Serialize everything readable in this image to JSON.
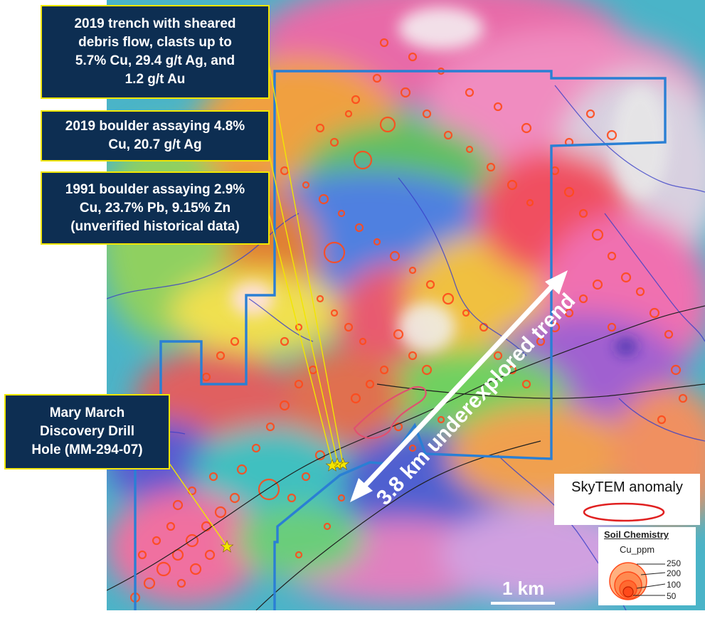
{
  "callouts": {
    "trench": [
      "2019 trench with sheared",
      "debris flow, clasts  up to",
      "5.7% Cu, 29.4 g/t Ag, and",
      "1.2 g/t Au"
    ],
    "boulder_2019": [
      "2019 boulder assaying 4.8%",
      "Cu, 20.7 g/t Ag"
    ],
    "boulder_1991": [
      "1991 boulder assaying 2.9%",
      "Cu, 23.7% Pb, 9.15% Zn",
      "(unverified historical data)"
    ],
    "discovery": [
      "Mary March",
      "Discovery Drill",
      "Hole (MM-294-07)"
    ]
  },
  "trend_label": "3.8 km underexplored trend",
  "legend_skytem": {
    "title": "SkyTEM anomaly",
    "color": "#e02020"
  },
  "legend_soil": {
    "title": "Soil Chemistry",
    "field": "Cu_ppm",
    "values": [
      "250",
      "200",
      "100",
      "50"
    ],
    "color": "#ff4a1a"
  },
  "scale_bar": {
    "label": "1 km"
  },
  "colors": {
    "callout_bg": "#0d2e52",
    "callout_border": "#f2e600",
    "claim_boundary": "#2a7fd4",
    "leader_line": "#f2e600"
  }
}
